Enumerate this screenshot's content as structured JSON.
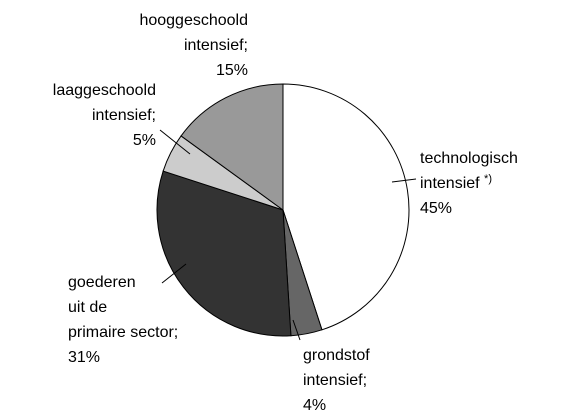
{
  "chart_data": {
    "type": "pie",
    "categories": [
      "technologisch\nintensief",
      "grondstof\nintensief;",
      "goederen\nuit de\nprimaire sector;",
      "laaggeschoold\nintensief;",
      "hooggeschoold\nintensief;"
    ],
    "annotation": "*)",
    "values": [
      45,
      4,
      31,
      5,
      15
    ],
    "value_labels": [
      "45%",
      "4%",
      "31%",
      "5%",
      "15%"
    ],
    "colors": [
      "#ffffff",
      "#666666",
      "#333333",
      "#cccccc",
      "#999999"
    ]
  }
}
